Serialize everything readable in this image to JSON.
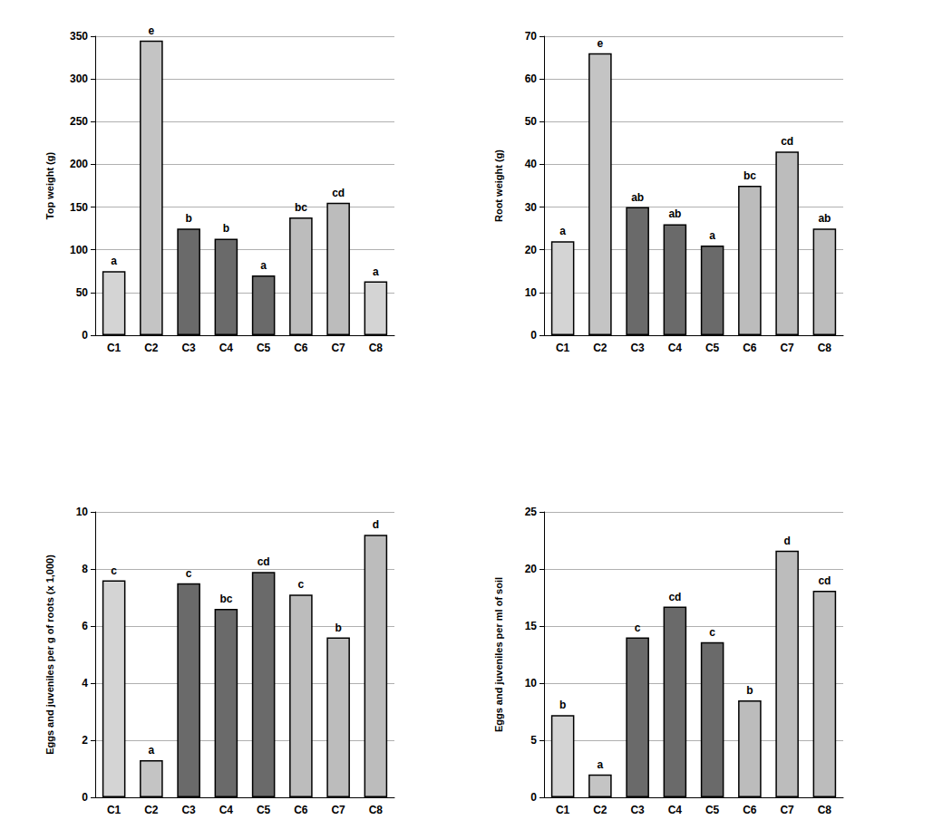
{
  "chart_data": [
    {
      "type": "bar",
      "y_label": "Top weight (g)",
      "categories": [
        "C1",
        "C2",
        "C3",
        "C4",
        "C5",
        "C6",
        "C7",
        "C8"
      ],
      "values": [
        75,
        345,
        125,
        113,
        70,
        138,
        155,
        63
      ],
      "annotations": [
        "a",
        "e",
        "b",
        "b",
        "a",
        "bc",
        "cd",
        "a"
      ],
      "colors": [
        "#d4d4d4",
        "#c4c4c4",
        "#6a6a6a",
        "#6a6a6a",
        "#6a6a6a",
        "#bcbcbc",
        "#bcbcbc",
        "#d4d4d4"
      ],
      "ylim": [
        0,
        350
      ],
      "yticks": [
        0,
        50,
        100,
        150,
        200,
        250,
        300,
        350
      ],
      "grid": true
    },
    {
      "type": "bar",
      "y_label": "Root weight (g)",
      "categories": [
        "C1",
        "C2",
        "C3",
        "C4",
        "C5",
        "C6",
        "C7",
        "C8"
      ],
      "values": [
        22,
        66,
        30,
        26,
        21,
        35,
        43,
        25
      ],
      "annotations": [
        "a",
        "e",
        "ab",
        "ab",
        "a",
        "bc",
        "cd",
        "ab"
      ],
      "colors": [
        "#d4d4d4",
        "#c4c4c4",
        "#6a6a6a",
        "#6a6a6a",
        "#6a6a6a",
        "#bcbcbc",
        "#bcbcbc",
        "#bcbcbc"
      ],
      "ylim": [
        0,
        70
      ],
      "yticks": [
        0,
        10,
        20,
        30,
        40,
        50,
        60,
        70
      ],
      "grid": true
    },
    {
      "type": "bar",
      "y_label": "Eggs and juveniles per g of roots (x 1,000)",
      "categories": [
        "C1",
        "C2",
        "C3",
        "C4",
        "C5",
        "C6",
        "C7",
        "C8"
      ],
      "values": [
        7.6,
        1.3,
        7.5,
        6.6,
        7.9,
        7.1,
        5.6,
        9.2
      ],
      "annotations": [
        "c",
        "a",
        "c",
        "bc",
        "cd",
        "c",
        "b",
        "d"
      ],
      "colors": [
        "#d4d4d4",
        "#c4c4c4",
        "#6a6a6a",
        "#6a6a6a",
        "#6a6a6a",
        "#bcbcbc",
        "#bcbcbc",
        "#bcbcbc"
      ],
      "ylim": [
        0,
        10
      ],
      "yticks": [
        0,
        2,
        4,
        6,
        8,
        10
      ],
      "grid": true
    },
    {
      "type": "bar",
      "y_label": "Eggs and juveniles per ml of soil",
      "categories": [
        "C1",
        "C2",
        "C3",
        "C4",
        "C5",
        "C6",
        "C7",
        "C8"
      ],
      "values": [
        7.2,
        2.0,
        14.0,
        16.7,
        13.6,
        8.5,
        21.6,
        18.1
      ],
      "annotations": [
        "b",
        "a",
        "c",
        "cd",
        "c",
        "b",
        "d",
        "cd"
      ],
      "colors": [
        "#d4d4d4",
        "#c4c4c4",
        "#6a6a6a",
        "#6a6a6a",
        "#6a6a6a",
        "#bcbcbc",
        "#bcbcbc",
        "#bcbcbc"
      ],
      "ylim": [
        0,
        25
      ],
      "yticks": [
        0,
        5,
        10,
        15,
        20,
        25
      ],
      "grid": true
    }
  ]
}
